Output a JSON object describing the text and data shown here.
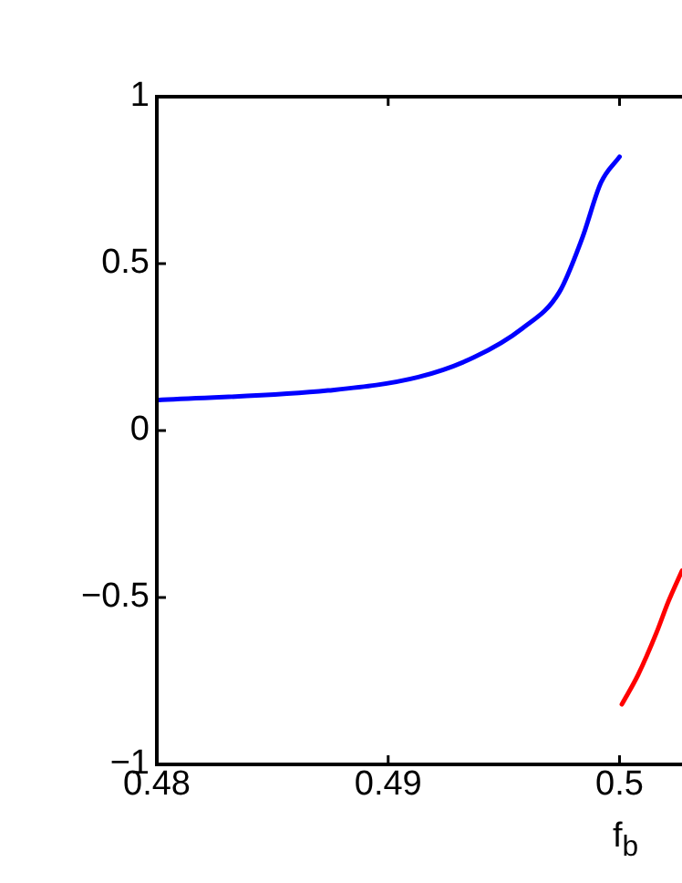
{
  "chart_data": {
    "type": "line",
    "xlabel": "f$_{b}$",
    "xlim": [
      0.48,
      0.5027
    ],
    "xticks": [
      0.48,
      0.49,
      0.5
    ],
    "ylim": [
      -1,
      1
    ],
    "yticks": [
      {
        "value": -1,
        "label": "−1"
      },
      {
        "value": -0.5,
        "label": "−0.5"
      },
      0,
      0.5,
      1
    ],
    "grid": false,
    "legend": false,
    "marker": "none",
    "line_style": "solid",
    "series": [
      {
        "color": "#0000ff",
        "x": [
          0.48,
          0.4874,
          0.4913,
          0.4937,
          0.4958,
          0.4974,
          0.4984,
          0.4992,
          0.5
        ],
        "values": [
          0.091,
          0.12,
          0.16,
          0.219,
          0.306,
          0.415,
          0.579,
          0.743,
          0.82
        ]
      },
      {
        "color": "#ff0000",
        "x": [
          0.5001,
          0.5008,
          0.5016,
          0.5021,
          0.5027
        ],
        "values": [
          -0.82,
          -0.732,
          -0.605,
          -0.514,
          -0.42
        ]
      }
    ]
  }
}
